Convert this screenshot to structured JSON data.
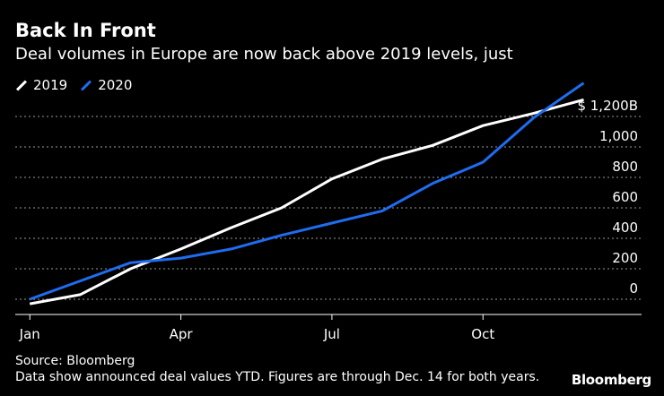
{
  "colors": {
    "background": "#000000",
    "text": "#ffffff",
    "grid": "#9a9a9a",
    "series_2019": "#ffffff",
    "series_2020": "#1f6cf0"
  },
  "footer": {
    "source": "Source: Bloomberg",
    "note": "Data show announced deal values YTD. Figures are through Dec. 14 for both years."
  },
  "brand": "Bloomberg",
  "chart_data": {
    "type": "line",
    "title": "Back In Front",
    "subtitle": "Deal volumes in Europe are now back above 2019 levels, just",
    "xlabel": "",
    "ylabel": "",
    "x": [
      1,
      2,
      3,
      4,
      5,
      6,
      7,
      8,
      9,
      10,
      11,
      12
    ],
    "x_tick_values": [
      1,
      4,
      7,
      10
    ],
    "x_tick_labels": [
      "Jan",
      "Apr",
      "Jul",
      "Oct"
    ],
    "xlim": [
      0.8,
      12.9
    ],
    "ylim": [
      -100,
      1200
    ],
    "y_ticks": [
      0,
      200,
      400,
      600,
      800,
      1000,
      1200
    ],
    "y_tick_labels": [
      "0",
      "200",
      "400",
      "600",
      "800",
      "1,000",
      "$ 1,200B"
    ],
    "grid": true,
    "legend": "top-left",
    "series": [
      {
        "name": "2019",
        "values": [
          -30,
          30,
          200,
          330,
          470,
          600,
          790,
          920,
          1010,
          1140,
          1220,
          1310
        ]
      },
      {
        "name": "2020",
        "values": [
          0,
          120,
          240,
          270,
          330,
          420,
          500,
          580,
          760,
          900,
          1190,
          1420
        ]
      }
    ]
  }
}
